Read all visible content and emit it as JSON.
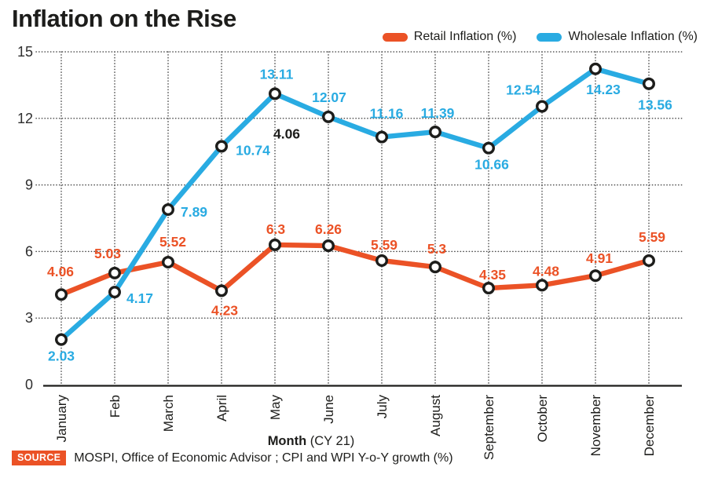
{
  "header": {
    "title": "Inflation on the Rise"
  },
  "legend": [
    {
      "label": "Retail Inflation (%)",
      "color": "#eb5226"
    },
    {
      "label": "Wholesale Inflation (%)",
      "color": "#29abe2"
    }
  ],
  "chart_data": {
    "type": "line",
    "categories": [
      "January",
      "Feb",
      "March",
      "April",
      "May",
      "June",
      "July",
      "August",
      "September",
      "October",
      "November",
      "December"
    ],
    "xlabel_bold": "Month",
    "xlabel_rest": " (CY 21)",
    "ylim": [
      0,
      15
    ],
    "yticks": [
      0,
      3,
      6,
      9,
      12,
      15
    ],
    "grid": "dotted horizontal and vertical",
    "legend_position": "top-right",
    "series": [
      {
        "name": "Retail Inflation (%)",
        "color": "#eb5226",
        "values": [
          4.06,
          5.03,
          5.52,
          4.23,
          6.3,
          6.26,
          5.59,
          5.3,
          4.35,
          4.48,
          4.91,
          5.59
        ],
        "labels": [
          "4.06",
          "5.03",
          "5.52",
          "4.23",
          "6.3",
          "6.26",
          "5.59",
          "5.3",
          "4.35",
          "4.48",
          "4.91",
          "5.59"
        ],
        "label_offsets": [
          [
            -1,
            -29
          ],
          [
            -9,
            -25
          ],
          [
            6,
            -26
          ],
          [
            4,
            25
          ],
          [
            1,
            -20
          ],
          [
            0,
            -21
          ],
          [
            3,
            -20
          ],
          [
            2,
            -23
          ],
          [
            5,
            -17
          ],
          [
            5,
            -18
          ],
          [
            5,
            -22
          ],
          [
            4,
            -30
          ]
        ]
      },
      {
        "name": "Wholesale Inflation (%)",
        "color": "#29abe2",
        "values": [
          2.03,
          4.17,
          7.89,
          10.74,
          13.11,
          12.07,
          11.16,
          11.39,
          10.66,
          12.54,
          14.23,
          13.56
        ],
        "labels": [
          "2.03",
          "4.17",
          "7.89",
          "10.74",
          "13.11",
          "12.07",
          "11.16",
          "11.39",
          "10.66",
          "12.54",
          "14.23",
          "13.56"
        ],
        "label_offsets": [
          [
            0,
            21
          ],
          [
            32,
            8
          ],
          [
            33,
            3
          ],
          [
            40,
            5
          ],
          [
            2,
            -25
          ],
          [
            1,
            -25
          ],
          [
            6,
            -30
          ],
          [
            3,
            -24
          ],
          [
            4,
            21
          ],
          [
            -24,
            -21
          ],
          [
            10,
            26
          ],
          [
            8,
            27
          ]
        ]
      }
    ],
    "annotations": [
      {
        "text": "4.06",
        "month_index": 4,
        "value": 11.3,
        "dx": 15,
        "color": "#1d1d1b"
      }
    ]
  },
  "source": {
    "badge": "SOURCE",
    "text": "MOSPI, Office of Economic Advisor ; CPI and WPI Y-o-Y growth (%)"
  }
}
